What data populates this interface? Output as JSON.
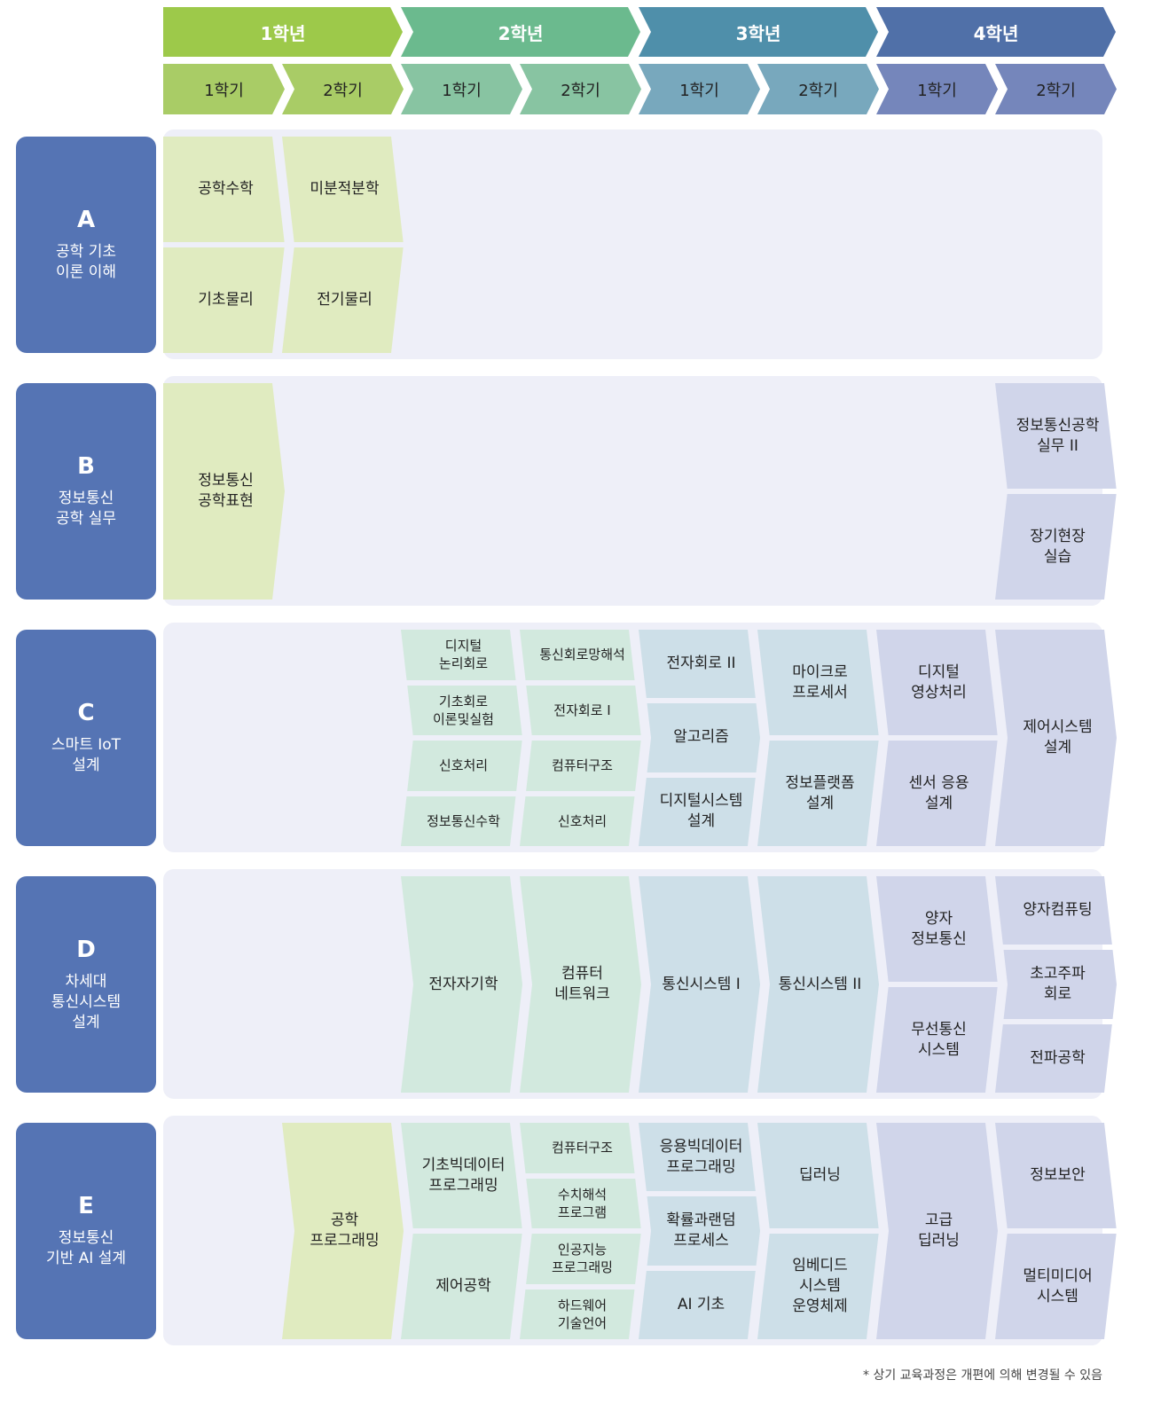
{
  "colors": {
    "years": [
      "#9dc94a",
      "#6bba8e",
      "#4f8faa",
      "#5070a8"
    ],
    "semesters": [
      "#a9cc66",
      "#88c4a2",
      "#78a8bd",
      "#7586bb"
    ],
    "courses": [
      "#e0ebc0",
      "#d2e9de",
      "#cddfe8",
      "#d0d5ea"
    ],
    "category": "#5574b4",
    "panel": "#eeeff8"
  },
  "years": [
    "1학년",
    "2학년",
    "3학년",
    "4학년"
  ],
  "semesters": [
    "1학기",
    "2학기",
    "1학기",
    "2학기",
    "1학기",
    "2학기",
    "1학기",
    "2학기"
  ],
  "rows": [
    {
      "letter": "A",
      "name": "공학 기초\n이론 이해",
      "columns": [
        {
          "col": 0,
          "items": [
            "공학수학",
            "기초물리"
          ]
        },
        {
          "col": 1,
          "items": [
            "미분적분학",
            "전기물리"
          ]
        }
      ]
    },
    {
      "letter": "B",
      "name": "정보통신\n공학 실무",
      "columns": [
        {
          "col": 0,
          "items": [
            "정보통신\n공학표현"
          ]
        },
        {
          "col": 7,
          "items": [
            "정보통신공학\n실무 II",
            "장기현장\n실습"
          ]
        }
      ]
    },
    {
      "letter": "C",
      "name": "스마트 IoT\n설계",
      "columns": [
        {
          "col": 2,
          "items": [
            "디지털\n논리회로",
            "기초회로\n이론및실험",
            "신호처리",
            "정보통신수학"
          ]
        },
        {
          "col": 3,
          "items": [
            "통신회로망해석",
            "전자회로 I",
            "컴퓨터구조",
            "신호처리"
          ]
        },
        {
          "col": 4,
          "items": [
            "전자회로 II",
            "알고리즘",
            "디지털시스템\n설계"
          ]
        },
        {
          "col": 5,
          "items": [
            "마이크로\n프로세서",
            "정보플랫폼\n설계"
          ]
        },
        {
          "col": 6,
          "items": [
            "디지털\n영상처리",
            "센서 응용\n설계"
          ]
        },
        {
          "col": 7,
          "items": [
            "제어시스템\n설계"
          ]
        }
      ]
    },
    {
      "letter": "D",
      "name": "차세대\n통신시스템\n설계",
      "columns": [
        {
          "col": 2,
          "items": [
            "전자자기학"
          ]
        },
        {
          "col": 3,
          "items": [
            "컴퓨터\n네트워크"
          ]
        },
        {
          "col": 4,
          "items": [
            "통신시스템 I"
          ]
        },
        {
          "col": 5,
          "items": [
            "통신시스템 II"
          ]
        },
        {
          "col": 6,
          "items": [
            "양자\n정보통신",
            "무선통신\n시스템"
          ]
        },
        {
          "col": 7,
          "items": [
            "양자컴퓨팅",
            "초고주파\n회로",
            "전파공학"
          ]
        }
      ]
    },
    {
      "letter": "E",
      "name": "정보통신\n기반 AI 설계",
      "columns": [
        {
          "col": 1,
          "items": [
            "공학\n프로그래밍"
          ]
        },
        {
          "col": 2,
          "items": [
            "기초빅데이터\n프로그래밍",
            "제어공학"
          ]
        },
        {
          "col": 3,
          "items": [
            "컴퓨터구조",
            "수치해석\n프로그램",
            "인공지능\n프로그래밍",
            "하드웨어\n기술언어"
          ]
        },
        {
          "col": 4,
          "items": [
            "응용빅데이터\n프로그래밍",
            "확률과랜덤\n프로세스",
            "AI 기초"
          ]
        },
        {
          "col": 5,
          "items": [
            "딥러닝",
            "임베디드\n시스템\n운영체제"
          ]
        },
        {
          "col": 6,
          "items": [
            "고급\n딥러닝"
          ]
        },
        {
          "col": 7,
          "items": [
            "정보보안",
            "멀티미디어\n시스템"
          ]
        }
      ]
    }
  ],
  "note": "* 상기 교육과정은 개편에 의해 변경될 수 있음"
}
